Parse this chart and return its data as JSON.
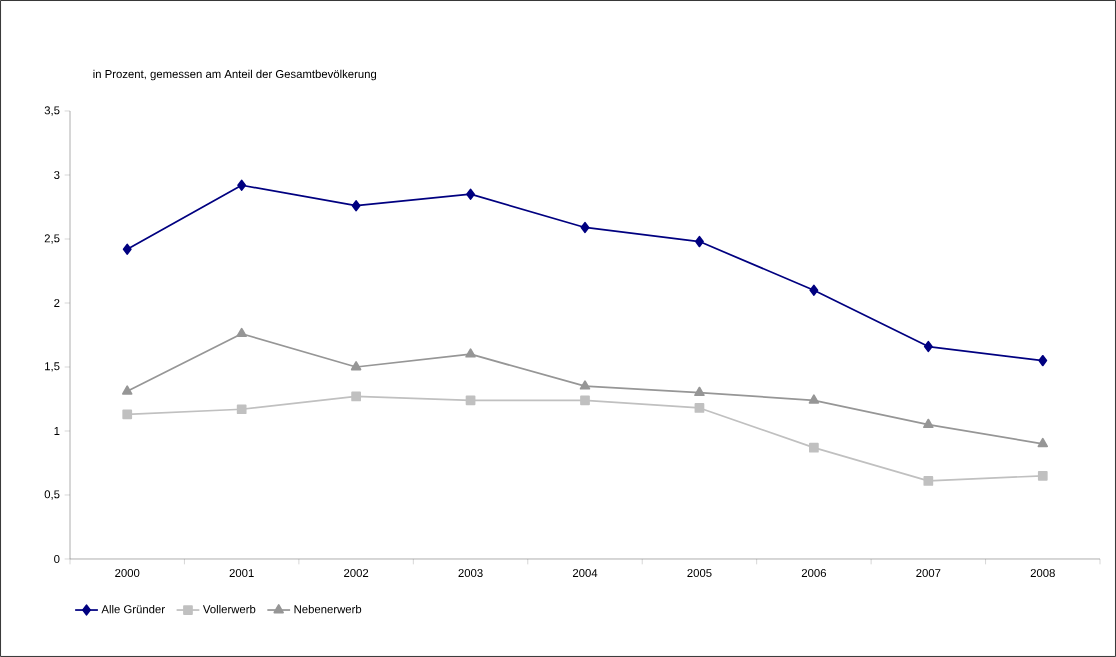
{
  "chart_data": {
    "type": "line",
    "title": "in Prozent, gemessen am Anteil der Gesamtbevölkerung",
    "categories": [
      "2000",
      "2001",
      "2002",
      "2003",
      "2004",
      "2005",
      "2006",
      "2007",
      "2008"
    ],
    "series": [
      {
        "name": "Alle Gründer",
        "color": "#000080",
        "marker": "diamond",
        "values": [
          2.42,
          2.92,
          2.76,
          2.85,
          2.59,
          2.48,
          2.1,
          1.66,
          1.55
        ]
      },
      {
        "name": "Vollerwerb",
        "color": "#c0c0c0",
        "marker": "square",
        "values": [
          1.13,
          1.17,
          1.27,
          1.24,
          1.24,
          1.18,
          0.87,
          0.61,
          0.65
        ]
      },
      {
        "name": "Nebenerwerb",
        "color": "#969696",
        "marker": "triangle",
        "values": [
          1.31,
          1.76,
          1.5,
          1.6,
          1.35,
          1.3,
          1.24,
          1.05,
          0.9
        ]
      }
    ],
    "ylim": [
      0,
      3.5
    ],
    "yticks": [
      0,
      {
        "value": 0.5,
        "label": "0,5"
      },
      1,
      {
        "value": 1.5,
        "label": "1,5"
      },
      2,
      {
        "value": 2.5,
        "label": "2,5"
      },
      3,
      {
        "value": 3.5,
        "label": "3,5"
      }
    ],
    "grid": false,
    "legend": "bottom"
  }
}
